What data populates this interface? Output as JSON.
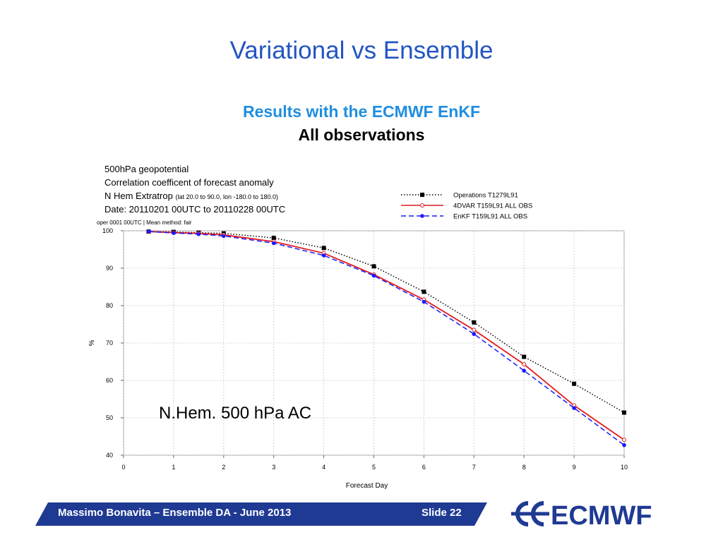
{
  "slide": {
    "title": "Variational vs Ensemble",
    "subtitle": "Results with the ECMWF EnKF",
    "subtitle2": "All observations",
    "footer_text": "Massimo Bonavita –  Ensemble DA - June 2013",
    "slide_number": "Slide 22",
    "logo_text": "ECMWF",
    "accent_color": "#2255c4",
    "footer_color": "#1f3a93"
  },
  "chart_info": {
    "line1": "500hPa geopotential",
    "line2": "Correlation coefficent of forecast anomaly",
    "line3_main": "N Hem Extratrop",
    "line3_small": "(lat  20.0 to 90.0, lon  -180.0 to  180.0)",
    "line4": "Date: 20110201 00UTC to 20110228 00UTC",
    "oper": "oper 0001 00UTC | Mean method: fair",
    "overlay_label": "N.Hem. 500 hPa AC"
  },
  "chart_data": {
    "type": "line",
    "xlabel": "Forecast Day",
    "ylabel": "%",
    "xlim": [
      0,
      10
    ],
    "ylim": [
      40,
      100
    ],
    "xticks": [
      "0",
      "1",
      "2",
      "3",
      "4",
      "5",
      "6",
      "7",
      "8",
      "9",
      "10"
    ],
    "yticks": [
      "40",
      "50",
      "60",
      "70",
      "80",
      "90",
      "100"
    ],
    "grid": true,
    "legend_position": "top-right",
    "series": [
      {
        "name": "Operations T1279L91",
        "color": "#000000",
        "style": "dotted",
        "marker": "square",
        "x": [
          0.5,
          1,
          1.5,
          2,
          3,
          4,
          5,
          6,
          7,
          8,
          9,
          10
        ],
        "y": [
          99.8,
          99.7,
          99.5,
          99.3,
          98.1,
          95.4,
          90.5,
          83.7,
          75.5,
          66.3,
          59.1,
          51.4
        ]
      },
      {
        "name": "4DVAR T159L91 ALL OBS",
        "color": "#e41a1c",
        "style": "solid",
        "marker": "circle-open",
        "x": [
          0.5,
          1,
          1.5,
          2,
          3,
          4,
          5,
          6,
          7,
          8,
          9,
          10
        ],
        "y": [
          99.8,
          99.5,
          99.3,
          98.9,
          97.1,
          94.0,
          88.3,
          81.6,
          73.5,
          64.3,
          53.3,
          44.1
        ]
      },
      {
        "name": "EnKF T159L91 ALL OBS",
        "color": "#1a1aff",
        "style": "dashed",
        "marker": "circle",
        "x": [
          0.5,
          1,
          1.5,
          2,
          3,
          4,
          5,
          6,
          7,
          8,
          9,
          10
        ],
        "y": [
          99.8,
          99.4,
          99.1,
          98.6,
          96.7,
          93.4,
          88.0,
          81.0,
          72.4,
          62.6,
          52.6,
          42.7
        ]
      }
    ]
  }
}
